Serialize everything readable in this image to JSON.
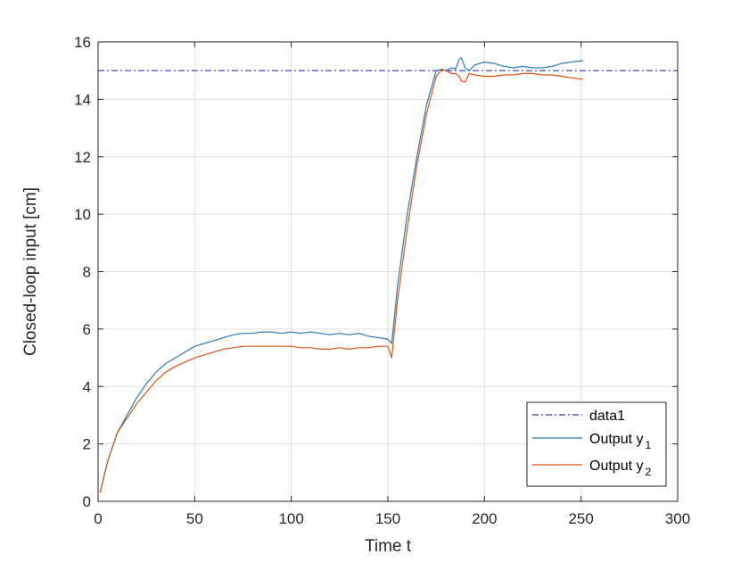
{
  "chart_data": {
    "type": "line",
    "title": "",
    "xlabel": "Time t",
    "ylabel": "Closed-loop input [cm]",
    "xlim": [
      0,
      300
    ],
    "ylim": [
      0,
      16
    ],
    "xticks": [
      0,
      50,
      100,
      150,
      200,
      250,
      300
    ],
    "yticks": [
      0,
      2,
      4,
      6,
      8,
      10,
      12,
      14,
      16
    ],
    "xtick_labels": [
      "0",
      "50",
      "100",
      "150",
      "200",
      "250",
      "300"
    ],
    "ytick_labels": [
      "0",
      "2",
      "4",
      "6",
      "8",
      "10",
      "12",
      "14",
      "16"
    ],
    "grid": true,
    "legend_position": "bottom-right",
    "series": [
      {
        "name": "data1",
        "legend_text": "data1",
        "style": "dashdot",
        "color": "#3333aa",
        "x": [
          0,
          300
        ],
        "y": [
          15,
          15
        ]
      },
      {
        "name": "Output y1",
        "legend_text": "Output y",
        "legend_sub": "1",
        "style": "solid",
        "color": "#2b7bb9",
        "x": [
          1,
          5,
          10,
          15,
          20,
          25,
          30,
          35,
          40,
          45,
          50,
          55,
          60,
          65,
          70,
          75,
          80,
          85,
          90,
          95,
          100,
          105,
          110,
          115,
          120,
          125,
          130,
          135,
          140,
          145,
          150,
          152,
          155,
          160,
          165,
          170,
          175,
          178,
          180,
          183,
          185,
          187,
          188,
          190,
          192,
          195,
          200,
          205,
          210,
          215,
          220,
          225,
          230,
          235,
          240,
          245,
          251
        ],
        "y": [
          0.3,
          1.4,
          2.4,
          3.0,
          3.6,
          4.1,
          4.5,
          4.8,
          5.0,
          5.2,
          5.4,
          5.5,
          5.6,
          5.7,
          5.8,
          5.85,
          5.85,
          5.9,
          5.9,
          5.85,
          5.9,
          5.85,
          5.9,
          5.85,
          5.8,
          5.85,
          5.8,
          5.85,
          5.75,
          5.7,
          5.65,
          5.5,
          7.5,
          10.0,
          12.0,
          13.8,
          15.0,
          15.05,
          15.0,
          15.1,
          15.05,
          15.4,
          15.45,
          15.1,
          15.0,
          15.2,
          15.3,
          15.25,
          15.15,
          15.1,
          15.15,
          15.1,
          15.1,
          15.15,
          15.25,
          15.3,
          15.35
        ]
      },
      {
        "name": "Output y2",
        "legend_text": "Output y",
        "legend_sub": "2",
        "style": "solid",
        "color": "#d95319",
        "x": [
          1,
          5,
          10,
          15,
          20,
          25,
          30,
          35,
          40,
          45,
          50,
          55,
          60,
          65,
          70,
          75,
          80,
          85,
          90,
          95,
          100,
          105,
          110,
          115,
          120,
          125,
          130,
          135,
          140,
          145,
          150,
          152,
          155,
          160,
          165,
          170,
          175,
          178,
          180,
          183,
          185,
          187,
          188,
          190,
          192,
          195,
          200,
          205,
          210,
          215,
          220,
          225,
          230,
          235,
          240,
          245,
          251
        ],
        "y": [
          0.3,
          1.4,
          2.4,
          2.9,
          3.4,
          3.8,
          4.2,
          4.5,
          4.7,
          4.85,
          5.0,
          5.1,
          5.2,
          5.3,
          5.35,
          5.4,
          5.4,
          5.4,
          5.4,
          5.4,
          5.4,
          5.35,
          5.35,
          5.3,
          5.3,
          5.35,
          5.3,
          5.35,
          5.35,
          5.4,
          5.4,
          5.0,
          7.0,
          9.5,
          11.7,
          13.5,
          14.8,
          15.05,
          15.0,
          14.9,
          14.9,
          14.8,
          14.65,
          14.6,
          14.9,
          14.85,
          14.8,
          14.8,
          14.85,
          14.85,
          14.9,
          14.9,
          14.85,
          14.85,
          14.8,
          14.75,
          14.7
        ]
      }
    ]
  }
}
